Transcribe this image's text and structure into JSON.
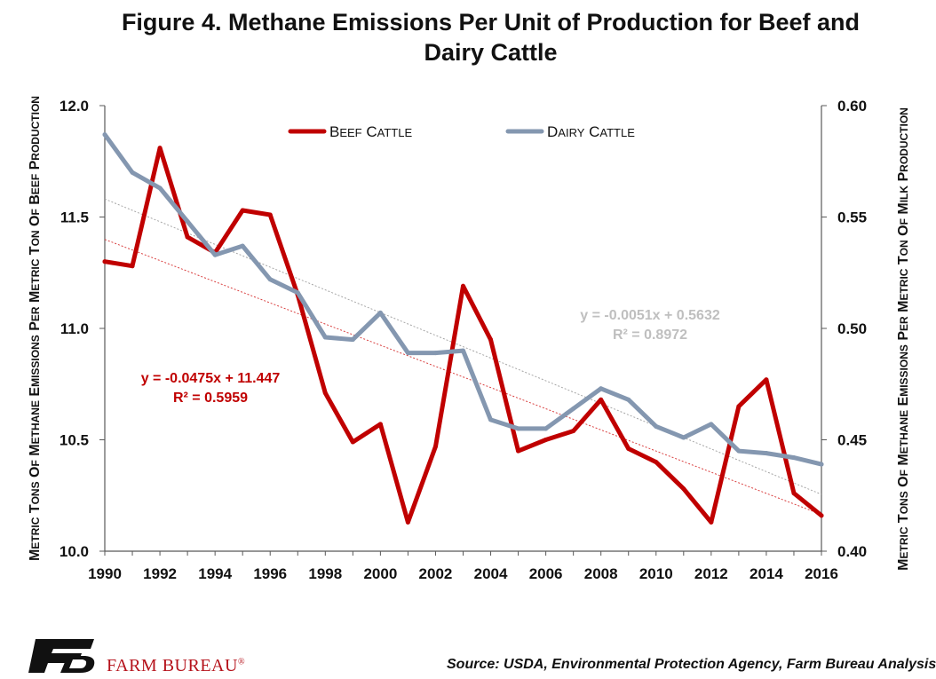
{
  "title": "Figure 4. Methane Emissions Per Unit of Production for Beef and Dairy Cattle",
  "source": "Source: USDA, Environmental Protection Agency, Farm Bureau Analysis",
  "brand": {
    "name": "FARM BUREAU",
    "registered_mark": "®",
    "logo_icon": "farm-bureau-fb-logo"
  },
  "colors": {
    "beef": "#C00000",
    "dairy": "#8497B0",
    "beef_trend": "#D94040",
    "dairy_trend": "#A6A6A6",
    "dairy_equation": "#BFBFBF",
    "axis": "#595959"
  },
  "chart_data": {
    "type": "line",
    "x": [
      1990,
      1991,
      1992,
      1993,
      1994,
      1995,
      1996,
      1997,
      1998,
      1999,
      2000,
      2001,
      2002,
      2003,
      2004,
      2005,
      2006,
      2007,
      2008,
      2009,
      2010,
      2011,
      2012,
      2013,
      2014,
      2015,
      2016
    ],
    "xlim": [
      1990,
      2016
    ],
    "xticks": [
      "1990",
      "1992",
      "1994",
      "1996",
      "1998",
      "2000",
      "2002",
      "2004",
      "2006",
      "2008",
      "2010",
      "2012",
      "2014",
      "2016"
    ],
    "series": [
      {
        "name": "Beef Cattle",
        "axis": "left",
        "color": "#C00000",
        "values": [
          11.3,
          11.28,
          11.81,
          11.41,
          11.34,
          11.53,
          11.51,
          11.15,
          10.71,
          10.49,
          10.57,
          10.13,
          10.47,
          11.19,
          10.95,
          10.45,
          10.5,
          10.54,
          10.68,
          10.46,
          10.4,
          10.28,
          10.13,
          10.65,
          10.77,
          10.26,
          10.16
        ]
      },
      {
        "name": "Dairy Cattle",
        "axis": "right",
        "color": "#8497B0",
        "values": [
          0.587,
          0.57,
          0.563,
          0.548,
          0.533,
          0.537,
          0.522,
          0.516,
          0.496,
          0.495,
          0.507,
          0.489,
          0.489,
          0.49,
          0.459,
          0.455,
          0.455,
          0.464,
          0.473,
          0.468,
          0.456,
          0.451,
          0.457,
          0.445,
          0.444,
          0.442,
          0.439
        ]
      }
    ],
    "trendlines": [
      {
        "series": "Beef Cattle",
        "axis": "left",
        "slope": -0.0475,
        "intercept": 11.447,
        "equation": "y = -0.0475x + 11.447",
        "r2": "R² = 0.5959"
      },
      {
        "series": "Dairy Cattle",
        "axis": "right",
        "slope": -0.0051,
        "intercept": 0.5632,
        "equation": "y = -0.0051x + 0.5632",
        "r2": "R² = 0.8972"
      }
    ],
    "y_left": {
      "label": "Metric Tons of Methane Emissions Per Metric Ton of Beef Production",
      "ylim": [
        10.0,
        12.0
      ],
      "ticks": [
        "10.0",
        "10.5",
        "11.0",
        "11.5",
        "12.0"
      ]
    },
    "y_right": {
      "label": "Metric Tons of Methane Emissions Per Metric Ton of Milk Production",
      "ylim": [
        0.4,
        0.6
      ],
      "ticks": [
        "0.40",
        "0.45",
        "0.50",
        "0.55",
        "0.60"
      ]
    },
    "grid": false,
    "legend_position": "top-center"
  }
}
